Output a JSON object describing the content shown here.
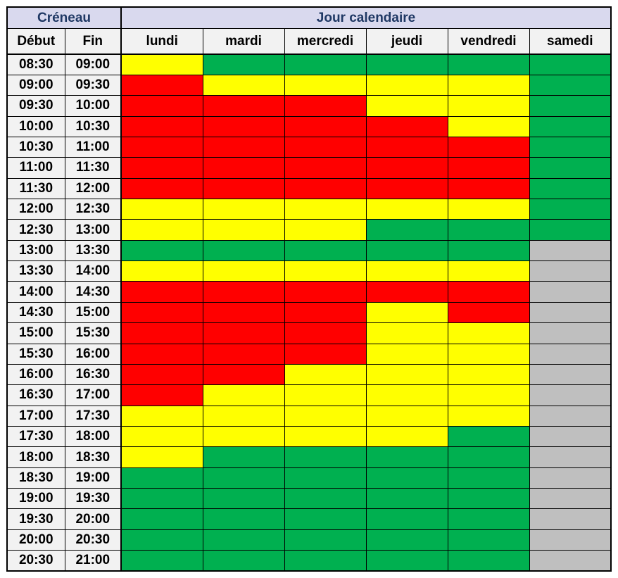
{
  "title_row": {
    "creneau": "Créneau",
    "jour_calendaire": "Jour calendaire"
  },
  "column_headers": {
    "debut": "Début",
    "fin": "Fin"
  },
  "colors": {
    "header_band_bg": "#D9D9EE",
    "header_band_text": "#1F3864",
    "label_cell_bg": "#F2F2F2",
    "label_cell_text": "#000000",
    "grid_border": "#000000",
    "page_bg": "#FFFFFF"
  },
  "chart_data": {
    "type": "heatmap",
    "title": "Créneau / Jour calendaire availability grid",
    "columns": [
      "lundi",
      "mardi",
      "mercredi",
      "jeudi",
      "vendredi",
      "samedi"
    ],
    "legend": {
      "R": {
        "name": "red",
        "hex": "#FF0000"
      },
      "Y": {
        "name": "yellow",
        "hex": "#FFFF00"
      },
      "G": {
        "name": "green",
        "hex": "#00B050"
      },
      "X": {
        "name": "gray",
        "hex": "#BFBFBF"
      }
    },
    "rows": [
      {
        "debut": "08:30",
        "fin": "09:00",
        "cells": [
          "Y",
          "G",
          "G",
          "G",
          "G",
          "G"
        ]
      },
      {
        "debut": "09:00",
        "fin": "09:30",
        "cells": [
          "R",
          "Y",
          "Y",
          "Y",
          "Y",
          "G"
        ]
      },
      {
        "debut": "09:30",
        "fin": "10:00",
        "cells": [
          "R",
          "R",
          "R",
          "Y",
          "Y",
          "G"
        ]
      },
      {
        "debut": "10:00",
        "fin": "10:30",
        "cells": [
          "R",
          "R",
          "R",
          "R",
          "Y",
          "G"
        ]
      },
      {
        "debut": "10:30",
        "fin": "11:00",
        "cells": [
          "R",
          "R",
          "R",
          "R",
          "R",
          "G"
        ]
      },
      {
        "debut": "11:00",
        "fin": "11:30",
        "cells": [
          "R",
          "R",
          "R",
          "R",
          "R",
          "G"
        ]
      },
      {
        "debut": "11:30",
        "fin": "12:00",
        "cells": [
          "R",
          "R",
          "R",
          "R",
          "R",
          "G"
        ]
      },
      {
        "debut": "12:00",
        "fin": "12:30",
        "cells": [
          "Y",
          "Y",
          "Y",
          "Y",
          "Y",
          "G"
        ]
      },
      {
        "debut": "12:30",
        "fin": "13:00",
        "cells": [
          "Y",
          "Y",
          "Y",
          "G",
          "G",
          "G"
        ]
      },
      {
        "debut": "13:00",
        "fin": "13:30",
        "cells": [
          "G",
          "G",
          "G",
          "G",
          "G",
          "X"
        ]
      },
      {
        "debut": "13:30",
        "fin": "14:00",
        "cells": [
          "Y",
          "Y",
          "Y",
          "Y",
          "Y",
          "X"
        ]
      },
      {
        "debut": "14:00",
        "fin": "14:30",
        "cells": [
          "R",
          "R",
          "R",
          "R",
          "R",
          "X"
        ]
      },
      {
        "debut": "14:30",
        "fin": "15:00",
        "cells": [
          "R",
          "R",
          "R",
          "Y",
          "R",
          "X"
        ]
      },
      {
        "debut": "15:00",
        "fin": "15:30",
        "cells": [
          "R",
          "R",
          "R",
          "Y",
          "Y",
          "X"
        ]
      },
      {
        "debut": "15:30",
        "fin": "16:00",
        "cells": [
          "R",
          "R",
          "R",
          "Y",
          "Y",
          "X"
        ]
      },
      {
        "debut": "16:00",
        "fin": "16:30",
        "cells": [
          "R",
          "R",
          "Y",
          "Y",
          "Y",
          "X"
        ]
      },
      {
        "debut": "16:30",
        "fin": "17:00",
        "cells": [
          "R",
          "Y",
          "Y",
          "Y",
          "Y",
          "X"
        ]
      },
      {
        "debut": "17:00",
        "fin": "17:30",
        "cells": [
          "Y",
          "Y",
          "Y",
          "Y",
          "Y",
          "X"
        ]
      },
      {
        "debut": "17:30",
        "fin": "18:00",
        "cells": [
          "Y",
          "Y",
          "Y",
          "Y",
          "G",
          "X"
        ]
      },
      {
        "debut": "18:00",
        "fin": "18:30",
        "cells": [
          "Y",
          "G",
          "G",
          "G",
          "G",
          "X"
        ]
      },
      {
        "debut": "18:30",
        "fin": "19:00",
        "cells": [
          "G",
          "G",
          "G",
          "G",
          "G",
          "X"
        ]
      },
      {
        "debut": "19:00",
        "fin": "19:30",
        "cells": [
          "G",
          "G",
          "G",
          "G",
          "G",
          "X"
        ]
      },
      {
        "debut": "19:30",
        "fin": "20:00",
        "cells": [
          "G",
          "G",
          "G",
          "G",
          "G",
          "X"
        ]
      },
      {
        "debut": "20:00",
        "fin": "20:30",
        "cells": [
          "G",
          "G",
          "G",
          "G",
          "G",
          "X"
        ]
      },
      {
        "debut": "20:30",
        "fin": "21:00",
        "cells": [
          "G",
          "G",
          "G",
          "G",
          "G",
          "X"
        ]
      }
    ]
  }
}
